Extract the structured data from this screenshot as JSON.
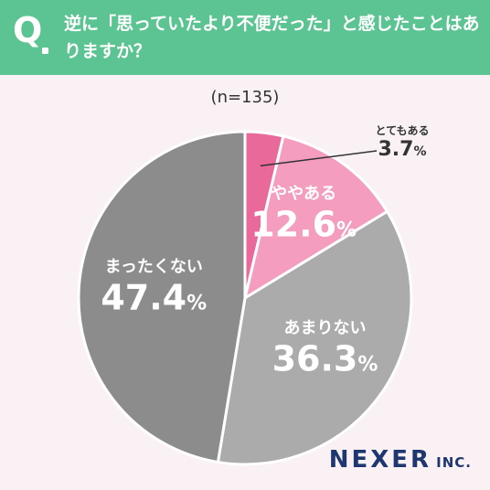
{
  "header": {
    "q": "Q",
    "question": "逆に「思っていたより不便だった」と感じたことはありますか？",
    "bg_color": "#5cc392"
  },
  "sample_size": "(n=135)",
  "chart_data": {
    "type": "pie",
    "slices": [
      {
        "label": "とてもある",
        "value": 3.7,
        "display": "3.7",
        "color": "#e8699a"
      },
      {
        "label": "ややある",
        "value": 12.6,
        "display": "12.6",
        "color": "#f49dbf"
      },
      {
        "label": "あまりない",
        "value": 36.3,
        "display": "36.3",
        "color": "#ababab"
      },
      {
        "label": "まったくない",
        "value": 47.4,
        "display": "47.4",
        "color": "#8c8c8c"
      }
    ],
    "percent_symbol": "%",
    "start": "12 o'clock",
    "direction": "clockwise"
  },
  "logo": {
    "main": "NEXER",
    "sub": "INC."
  }
}
